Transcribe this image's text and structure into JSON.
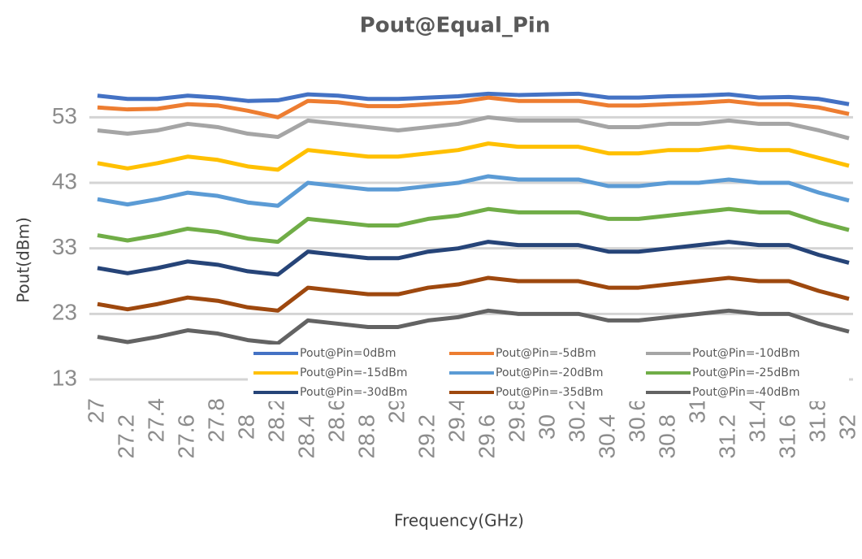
{
  "chart_data": {
    "type": "line",
    "title": "Pout@Equal_Pin",
    "x_label": "Frequency(GHz)",
    "y_label": "Pout(dBm)",
    "x": [
      27,
      27.2,
      27.4,
      27.6,
      27.8,
      28,
      28.2,
      28.4,
      28.6,
      28.8,
      29,
      29.2,
      29.4,
      29.6,
      29.8,
      30,
      30.2,
      30.4,
      30.6,
      30.8,
      31,
      31.2,
      31.4,
      31.6,
      31.8,
      32
    ],
    "xlim": [
      27,
      32
    ],
    "xticks": [
      27,
      27.2,
      27.4,
      27.6,
      27.8,
      28,
      28.2,
      28.4,
      28.6,
      28.8,
      29,
      29.2,
      29.4,
      29.6,
      29.8,
      30,
      30.2,
      30.4,
      30.6,
      30.8,
      31,
      31.2,
      31.4,
      31.6,
      31.8,
      32
    ],
    "ylim": [
      13,
      58.5
    ],
    "yticks": [
      13,
      23,
      33,
      43,
      53
    ],
    "grid": true,
    "series": [
      {
        "name": "Pout@Pin=0dBm",
        "color": "#4472c4",
        "values": [
          56.3,
          55.8,
          55.8,
          56.3,
          56,
          55.5,
          55.6,
          56.5,
          56.3,
          55.8,
          55.8,
          56,
          56.2,
          56.6,
          56.4,
          56.5,
          56.6,
          56,
          56,
          56.2,
          56.3,
          56.5,
          56,
          56.1,
          55.8,
          55
        ]
      },
      {
        "name": "Pout@Pin=-5dBm",
        "color": "#ed7d31",
        "values": [
          54.5,
          54.2,
          54.3,
          55,
          54.8,
          54,
          53,
          55.5,
          55.3,
          54.7,
          54.7,
          55,
          55.3,
          56,
          55.5,
          55.5,
          55.5,
          54.8,
          54.8,
          55,
          55.2,
          55.5,
          55,
          55,
          54.5,
          53.5
        ]
      },
      {
        "name": "Pout@Pin=-10dBm",
        "color": "#a5a5a5",
        "values": [
          51,
          50.5,
          51,
          52,
          51.5,
          50.5,
          50,
          52.5,
          52,
          51.5,
          51,
          51.5,
          52,
          53,
          52.5,
          52.5,
          52.5,
          51.5,
          51.5,
          52,
          52,
          52.5,
          52,
          52,
          51,
          49.8
        ]
      },
      {
        "name": "Pout@Pin=-15dBm",
        "color": "#ffc000",
        "values": [
          46,
          45.2,
          46,
          47,
          46.5,
          45.5,
          45,
          48,
          47.5,
          47,
          47,
          47.5,
          48,
          49,
          48.5,
          48.5,
          48.5,
          47.5,
          47.5,
          48,
          48,
          48.5,
          48,
          48,
          46.8,
          45.6
        ]
      },
      {
        "name": "Pout@Pin=-20dBm",
        "color": "#5b9bd5",
        "values": [
          40.5,
          39.7,
          40.5,
          41.5,
          41,
          40,
          39.5,
          43,
          42.5,
          42,
          42,
          42.5,
          43,
          44,
          43.5,
          43.5,
          43.5,
          42.5,
          42.5,
          43,
          43,
          43.5,
          43,
          43,
          41.5,
          40.3
        ]
      },
      {
        "name": "Pout@Pin=-25dBm",
        "color": "#70ad47",
        "values": [
          35,
          34.2,
          35,
          36,
          35.5,
          34.5,
          34,
          37.5,
          37,
          36.5,
          36.5,
          37.5,
          38,
          39,
          38.5,
          38.5,
          38.5,
          37.5,
          37.5,
          38,
          38.5,
          39,
          38.5,
          38.5,
          37,
          35.8
        ]
      },
      {
        "name": "Pout@Pin=-30dBm",
        "color": "#264478",
        "values": [
          30,
          29.2,
          30,
          31,
          30.5,
          29.5,
          29,
          32.5,
          32,
          31.5,
          31.5,
          32.5,
          33,
          34,
          33.5,
          33.5,
          33.5,
          32.5,
          32.5,
          33,
          33.5,
          34,
          33.5,
          33.5,
          32,
          30.8
        ]
      },
      {
        "name": "Pout@Pin=-35dBm",
        "color": "#9e480e",
        "values": [
          24.5,
          23.7,
          24.5,
          25.5,
          25,
          24,
          23.5,
          27,
          26.5,
          26,
          26,
          27,
          27.5,
          28.5,
          28,
          28,
          28,
          27,
          27,
          27.5,
          28,
          28.5,
          28,
          28,
          26.5,
          25.3
        ]
      },
      {
        "name": "Pout@Pin=-40dBm",
        "color": "#636363",
        "values": [
          19.5,
          18.7,
          19.5,
          20.5,
          20,
          19,
          18.5,
          22,
          21.5,
          21,
          21,
          22,
          22.5,
          23.5,
          23,
          23,
          23,
          22,
          22,
          22.5,
          23,
          23.5,
          23,
          23,
          21.5,
          20.3
        ]
      }
    ]
  }
}
